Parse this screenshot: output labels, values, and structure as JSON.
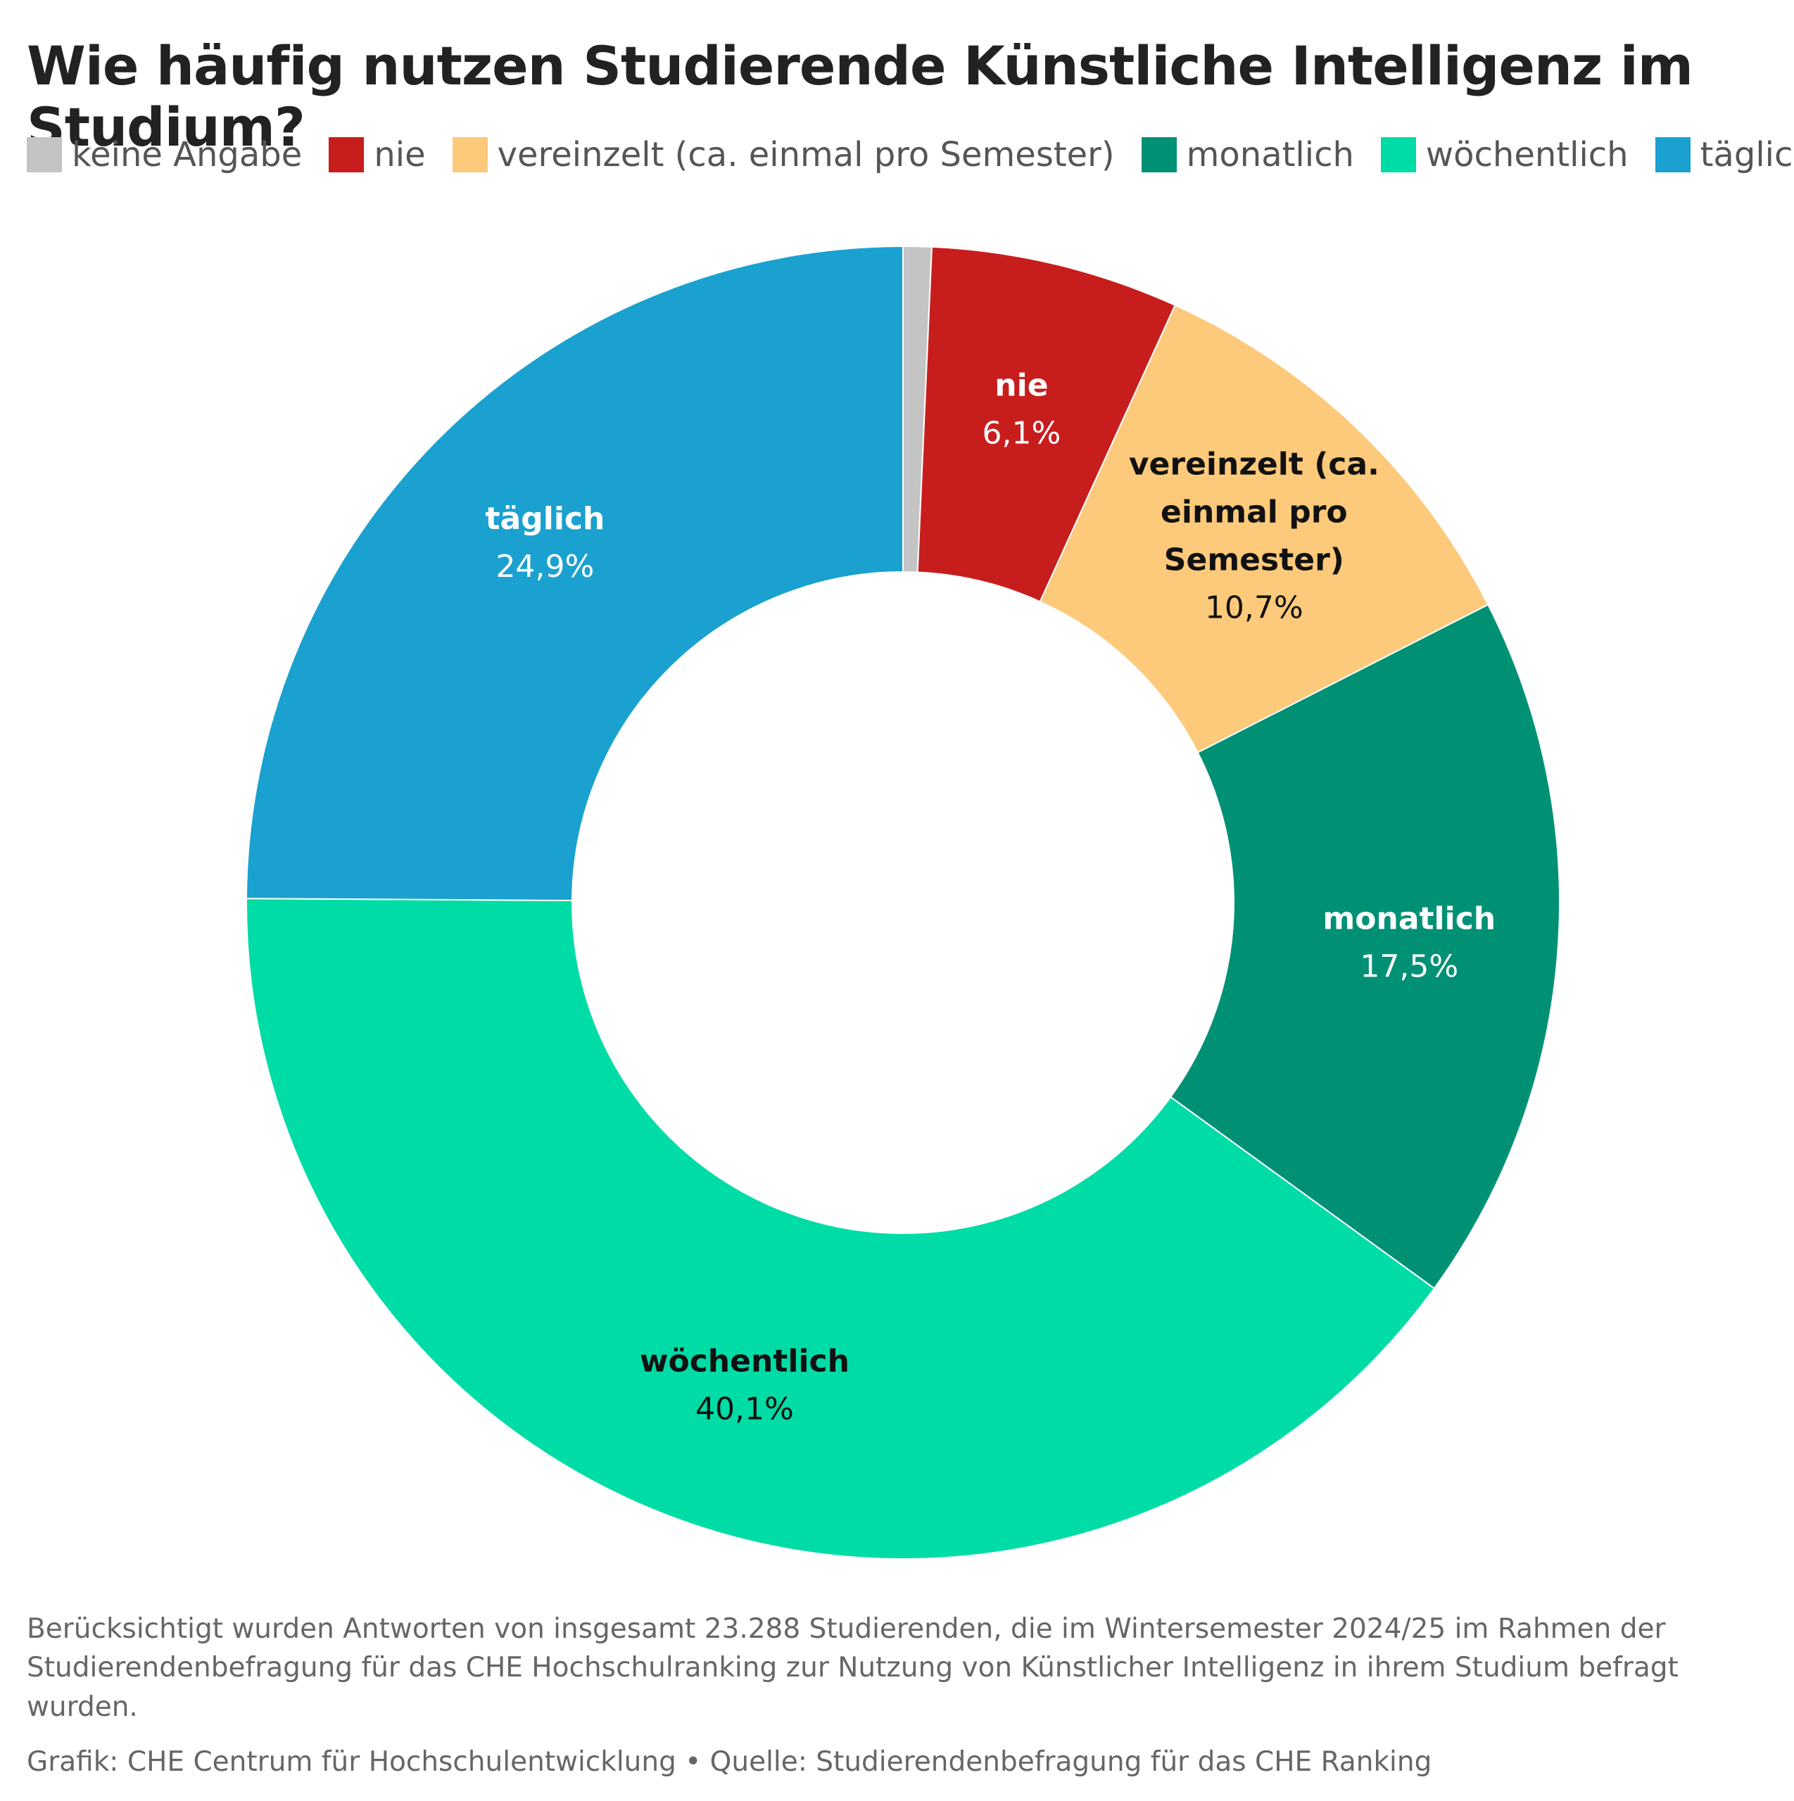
{
  "chart_data": {
    "type": "pie",
    "variant": "donut",
    "title": "Wie häufig nutzen Studierende Künstliche Intelligenz im Studium?",
    "legend_position": "top",
    "unit": "%",
    "slices": [
      {
        "name": "keine Angabe",
        "value": 0.7,
        "label": "",
        "color": "#c4c4c4",
        "label_color": "#ffffff",
        "show_label": false
      },
      {
        "name": "nie",
        "value": 6.1,
        "label": "6,1%",
        "color": "#c71e1d",
        "label_color": "#ffffff",
        "show_label": true
      },
      {
        "name": "vereinzelt (ca. einmal pro Semester)",
        "value": 10.7,
        "label": "10,7%",
        "color": "#fdc97a",
        "label_color": "#111111",
        "show_label": true
      },
      {
        "name": "monatlich",
        "value": 17.5,
        "label": "17,5%",
        "color": "#009175",
        "label_color": "#ffffff",
        "show_label": true
      },
      {
        "name": "wöchentlich",
        "value": 40.1,
        "label": "40,1%",
        "color": "#00dca6",
        "label_color": "#111111",
        "show_label": true
      },
      {
        "name": "täglich",
        "value": 24.9,
        "label": "24,9%",
        "color": "#1aa1cf",
        "label_color": "#ffffff",
        "show_label": true
      }
    ],
    "slice_label_lines": {
      "vereinzelt (ca. einmal pro Semester)": [
        "vereinzelt (ca.",
        "einmal pro",
        "Semester)"
      ]
    },
    "notes": "Berücksichtigt wurden Antworten von insgesamt 23.288 Studierenden, die im Wintersemester 2024/25 im Rahmen der Studierendenbefragung für das CHE Hochschulranking zur Nutzung von Künstlicher Intelligenz in ihrem Studium befragt wurden.",
    "source": "Grafik: CHE Centrum für Hochschulentwicklung • Quelle: Studierendenbefragung für das CHE Ranking"
  }
}
